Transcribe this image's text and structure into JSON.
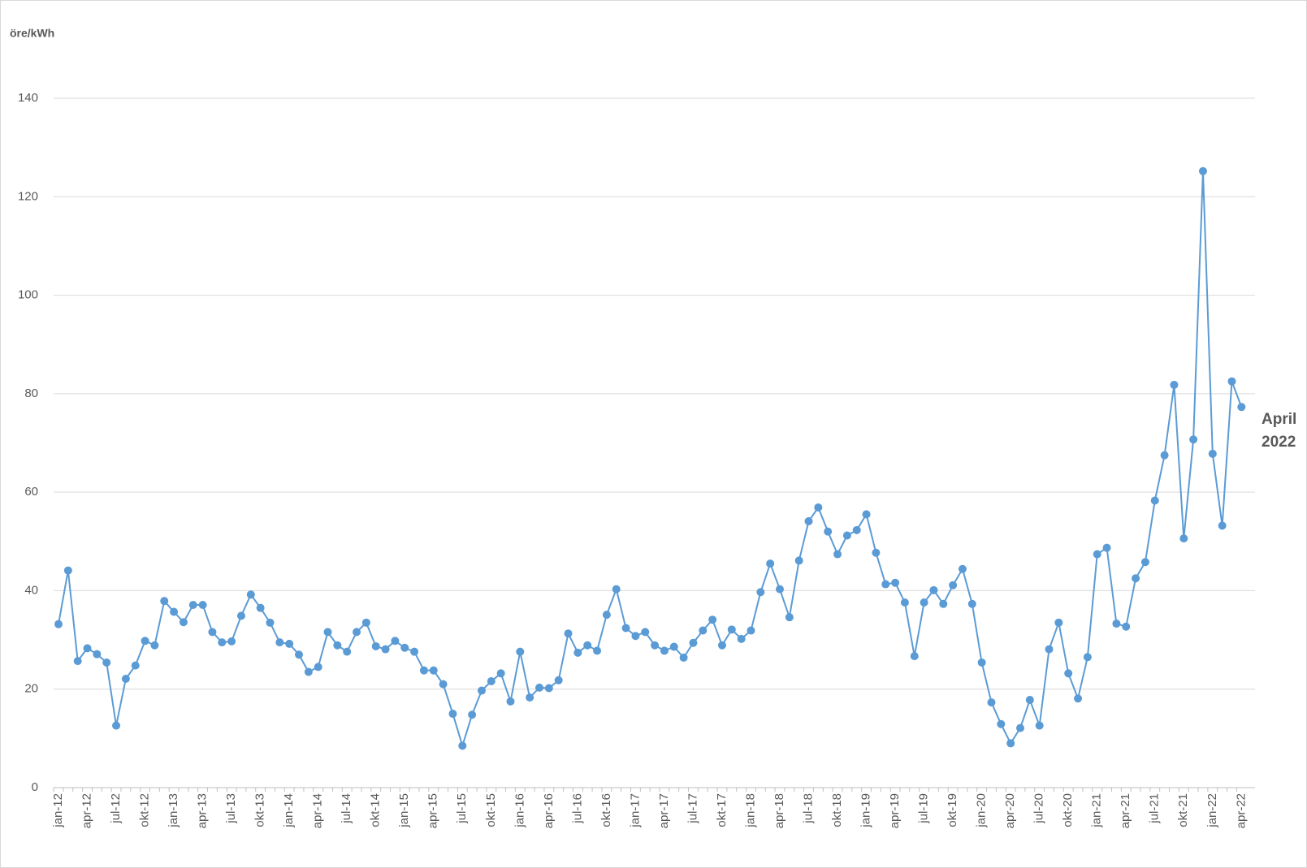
{
  "chart_data": {
    "type": "line",
    "y_label": "öre/kWh",
    "annotation": "April 2022",
    "categories": [
      "jan-12",
      null,
      null,
      "apr-12",
      null,
      null,
      "jul-12",
      null,
      null,
      "okt-12",
      null,
      null,
      "jan-13",
      null,
      null,
      "apr-13",
      null,
      null,
      "jul-13",
      null,
      null,
      "okt-13",
      null,
      null,
      "jan-14",
      null,
      null,
      "apr-14",
      null,
      null,
      "jul-14",
      null,
      null,
      "okt-14",
      null,
      null,
      "jan-15",
      null,
      null,
      "apr-15",
      null,
      null,
      "jul-15",
      null,
      null,
      "okt-15",
      null,
      null,
      "jan-16",
      null,
      null,
      "apr-16",
      null,
      null,
      "jul-16",
      null,
      null,
      "okt-16",
      null,
      null,
      "jan-17",
      null,
      null,
      "apr-17",
      null,
      null,
      "jul-17",
      null,
      null,
      "okt-17",
      null,
      null,
      "jan-18",
      null,
      null,
      "apr-18",
      null,
      null,
      "jul-18",
      null,
      null,
      "okt-18",
      null,
      null,
      "jan-19",
      null,
      null,
      "apr-19",
      null,
      null,
      "jul-19",
      null,
      null,
      "okt-19",
      null,
      null,
      "jan-20",
      null,
      null,
      "apr-20",
      null,
      null,
      "jul-20",
      null,
      null,
      "okt-20",
      null,
      null,
      "jan-21",
      null,
      null,
      "apr-21",
      null,
      null,
      "jul-21",
      null,
      null,
      "okt-21",
      null,
      null,
      "jan-22",
      null,
      null,
      "apr-22"
    ],
    "values": [
      33.2,
      44.1,
      25.7,
      28.3,
      27.1,
      25.4,
      12.6,
      22.1,
      24.8,
      29.8,
      28.9,
      37.9,
      35.7,
      33.6,
      37.1,
      37.1,
      31.6,
      29.5,
      29.7,
      34.9,
      39.2,
      36.5,
      33.5,
      29.5,
      29.2,
      27.0,
      23.5,
      24.5,
      31.6,
      28.9,
      27.6,
      31.6,
      33.5,
      28.7,
      28.1,
      29.8,
      28.4,
      27.6,
      23.8,
      23.8,
      21.0,
      15.0,
      8.5,
      14.8,
      19.7,
      21.6,
      23.2,
      17.5,
      27.6,
      18.3,
      20.3,
      20.2,
      21.8,
      31.3,
      27.4,
      28.9,
      27.8,
      35.1,
      40.3,
      32.4,
      30.8,
      31.6,
      28.9,
      27.8,
      28.6,
      26.4,
      29.4,
      31.9,
      34.1,
      28.9,
      32.1,
      30.2,
      31.9,
      39.7,
      45.5,
      40.3,
      34.6,
      46.1,
      54.1,
      56.9,
      52.0,
      47.4,
      51.2,
      52.3,
      55.5,
      47.7,
      41.3,
      41.6,
      37.6,
      26.7,
      37.6,
      40.1,
      37.3,
      41.1,
      44.4,
      37.3,
      25.4,
      17.3,
      12.9,
      9.0,
      12.1,
      17.8,
      12.6,
      28.1,
      33.5,
      23.2,
      18.1,
      26.5,
      47.4,
      48.7,
      33.3,
      32.7,
      42.5,
      45.8,
      58.3,
      67.5,
      81.8,
      50.6,
      70.7,
      125.2,
      67.8,
      53.2,
      82.5,
      77.3
    ],
    "color": "#5b9bd5",
    "ylim": [
      0,
      140
    ],
    "yticks": [
      0,
      20,
      40,
      60,
      80,
      100,
      120,
      140
    ],
    "grid": true
  }
}
